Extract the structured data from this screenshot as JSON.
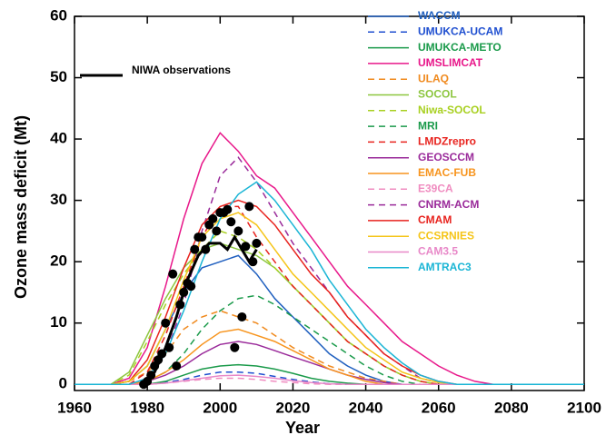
{
  "chart_data": {
    "type": "line",
    "x_label": "Year",
    "y_label": "Ozone mass deficit (Mt)",
    "xlim": [
      1960,
      2100
    ],
    "ylim": [
      -1,
      60
    ],
    "xticks": [
      1960,
      1980,
      2000,
      2020,
      2040,
      2060,
      2080,
      2100
    ],
    "yticks": [
      0,
      10,
      20,
      30,
      40,
      50,
      60
    ],
    "x": [
      1960,
      1965,
      1970,
      1975,
      1980,
      1985,
      1990,
      1995,
      2000,
      2005,
      2010,
      2015,
      2020,
      2025,
      2030,
      2035,
      2040,
      2045,
      2050,
      2055,
      2060,
      2065,
      2070,
      2075,
      2080,
      2085,
      2090,
      2095,
      2100
    ],
    "series": [
      {
        "name": "WACCM",
        "color": "#1f5fbf",
        "dash": false,
        "values": [
          0,
          0,
          0,
          0.5,
          3,
          9,
          15,
          19,
          20,
          21,
          18,
          14,
          11,
          8,
          5,
          3,
          1.5,
          0.5,
          0,
          0,
          0,
          0,
          0,
          0,
          0,
          0,
          0,
          0,
          0
        ]
      },
      {
        "name": "UMUKCA-UCAM",
        "color": "#1f4fd0",
        "dash": true,
        "values": [
          0,
          0,
          0,
          0,
          0,
          0.3,
          0.8,
          1.5,
          2,
          2,
          1.8,
          1.3,
          0.8,
          0.4,
          0.1,
          0,
          0,
          0,
          0,
          0,
          0,
          0,
          0,
          0,
          0,
          0,
          0,
          0,
          0
        ]
      },
      {
        "name": "UMUKCA-METO",
        "color": "#1a9a4a",
        "dash": false,
        "values": [
          0,
          0,
          0,
          0,
          0,
          0.5,
          1.5,
          2.5,
          3,
          3.2,
          3,
          2.5,
          1.8,
          1,
          0.5,
          0.2,
          0,
          0,
          0,
          0,
          0,
          0,
          0,
          0,
          0,
          0,
          0,
          0,
          0
        ]
      },
      {
        "name": "UMSLIMCAT",
        "color": "#e8178a",
        "dash": false,
        "values": [
          0,
          0,
          0,
          1,
          6,
          16,
          27,
          36,
          41,
          38,
          34,
          32,
          28,
          24,
          20,
          16,
          13,
          10,
          7,
          5,
          3,
          1.5,
          0.5,
          0,
          0,
          0,
          0,
          0,
          0
        ]
      },
      {
        "name": "ULAQ",
        "color": "#f08a1e",
        "dash": true,
        "values": [
          0,
          0,
          0,
          0.5,
          2,
          5,
          9,
          11,
          12,
          11,
          10,
          8,
          6,
          4.5,
          3,
          2,
          1,
          0.5,
          0,
          0,
          0,
          0,
          0,
          0,
          0,
          0,
          0,
          0,
          0
        ]
      },
      {
        "name": "SOCOL",
        "color": "#8cc63f",
        "dash": false,
        "values": [
          0,
          0,
          0,
          2,
          8,
          14,
          19,
          22,
          23,
          22,
          21,
          19,
          16,
          13,
          10,
          7,
          5,
          3,
          1.5,
          0.5,
          0,
          0,
          0,
          0,
          0,
          0,
          0,
          0,
          0
        ]
      },
      {
        "name": "Niwa-SOCOL",
        "color": "#a8d020",
        "dash": true,
        "values": [
          0,
          0,
          0,
          1.5,
          7,
          13,
          18,
          22,
          25,
          24,
          22,
          19,
          16,
          13,
          10,
          7,
          5,
          3,
          1.5,
          0.5,
          0,
          0,
          0,
          0,
          0,
          0,
          0,
          0,
          0
        ]
      },
      {
        "name": "MRI",
        "color": "#1a9a4a",
        "dash": true,
        "values": [
          0,
          0,
          0,
          0,
          0.5,
          2,
          5,
          9,
          12,
          14,
          14.5,
          13,
          11,
          9,
          7,
          5,
          3,
          1.5,
          0.5,
          0,
          0,
          0,
          0,
          0,
          0,
          0,
          0,
          0,
          0
        ]
      },
      {
        "name": "LMDZrepro",
        "color": "#e8231e",
        "dash": true,
        "values": [
          0,
          0,
          0,
          0,
          2,
          8,
          16,
          24,
          29,
          29,
          24,
          20,
          16,
          13,
          10,
          7,
          5,
          3,
          1.5,
          0.5,
          0,
          0,
          0,
          0,
          0,
          0,
          0,
          0,
          0
        ]
      },
      {
        "name": "GEOSCCM",
        "color": "#9a2a9a",
        "dash": false,
        "values": [
          0,
          0,
          0,
          0,
          0.5,
          1.5,
          3,
          5,
          6.5,
          7,
          6.5,
          5.5,
          4.5,
          3.5,
          2.5,
          1.5,
          0.8,
          0.3,
          0,
          0,
          0,
          0,
          0,
          0,
          0,
          0,
          0,
          0,
          0
        ]
      },
      {
        "name": "EMAC-FUB",
        "color": "#f7941d",
        "dash": false,
        "values": [
          0,
          0,
          0,
          0,
          0.5,
          2,
          4,
          6.5,
          8.5,
          9,
          8,
          7,
          5.5,
          4,
          2.5,
          1.5,
          0.5,
          0,
          0,
          0,
          0,
          0,
          0,
          0,
          0,
          0,
          0,
          0,
          0
        ]
      },
      {
        "name": "E39CA",
        "color": "#f08cc0",
        "dash": true,
        "values": [
          0,
          0,
          0,
          0,
          0,
          0.2,
          0.5,
          0.8,
          1,
          1,
          0.8,
          0.5,
          0.3,
          0.1,
          0,
          0,
          0,
          0,
          0,
          0,
          0,
          0,
          0,
          0,
          0,
          0,
          0,
          0,
          0
        ]
      },
      {
        "name": "CNRM-ACM",
        "color": "#9a2a9a",
        "dash": true,
        "values": [
          0,
          0,
          0,
          0,
          1,
          5,
          13,
          25,
          34,
          37,
          33,
          28,
          23,
          19,
          15,
          11,
          8,
          5,
          3,
          1,
          0.3,
          0,
          0,
          0,
          0,
          0,
          0,
          0,
          0
        ]
      },
      {
        "name": "CMAM",
        "color": "#e8231e",
        "dash": false,
        "values": [
          0,
          0,
          0,
          0.5,
          4,
          11,
          19,
          26,
          29,
          30,
          29,
          26,
          22,
          18,
          15,
          11,
          8,
          5,
          3,
          1.5,
          0.5,
          0,
          0,
          0,
          0,
          0,
          0,
          0,
          0
        ]
      },
      {
        "name": "CCSRNIES",
        "color": "#f5c518",
        "dash": false,
        "values": [
          0,
          0,
          0,
          0.5,
          3,
          9,
          17,
          24,
          27,
          28,
          26,
          22,
          18,
          15,
          12,
          9,
          6,
          4,
          2,
          1,
          0.3,
          0,
          0,
          0,
          0,
          0,
          0,
          0,
          0
        ]
      },
      {
        "name": "CAM3.5",
        "color": "#e888c8",
        "dash": false,
        "values": [
          0,
          0,
          0,
          0,
          0,
          0.2,
          0.6,
          1,
          1.4,
          1.5,
          1.3,
          1,
          0.6,
          0.3,
          0.1,
          0,
          0,
          0,
          0,
          0,
          0,
          0,
          0,
          0,
          0,
          0,
          0,
          0,
          0
        ]
      },
      {
        "name": "AMTRAC3",
        "color": "#1ab5d5",
        "dash": false,
        "values": [
          0,
          0,
          0,
          0,
          1,
          5,
          12,
          20,
          27,
          31,
          33,
          30,
          26,
          22,
          17,
          13,
          9,
          6,
          3.5,
          1.5,
          0.5,
          0,
          0,
          0,
          0,
          0,
          0,
          0,
          0
        ]
      }
    ],
    "observations": {
      "name": "NIWA observations",
      "color": "#000000",
      "x": [
        1979,
        1980,
        1981,
        1982,
        1983,
        1984,
        1985,
        1986,
        1987,
        1988,
        1989,
        1990,
        1991,
        1992,
        1993,
        1994,
        1995,
        1996,
        1997,
        1998,
        1999,
        2000,
        2001,
        2002,
        2003,
        2004,
        2005,
        2006,
        2007,
        2008,
        2009,
        2010
      ],
      "values": [
        0,
        0.5,
        1.5,
        3,
        4,
        5,
        10,
        6,
        18,
        3,
        13,
        15,
        16.5,
        16,
        22,
        24,
        24,
        22,
        26,
        27,
        25,
        28,
        28,
        28.5,
        26.5,
        6,
        25,
        11,
        22.5,
        29,
        20,
        23
      ],
      "fit": {
        "x": [
          1979,
          1982,
          1985,
          1988,
          1991,
          1994,
          1997,
          2000,
          2002,
          2004,
          2006,
          2008,
          2010
        ],
        "values": [
          0,
          2,
          6,
          11,
          17,
          21,
          23,
          23,
          22,
          24,
          22,
          20,
          22
        ]
      }
    }
  }
}
